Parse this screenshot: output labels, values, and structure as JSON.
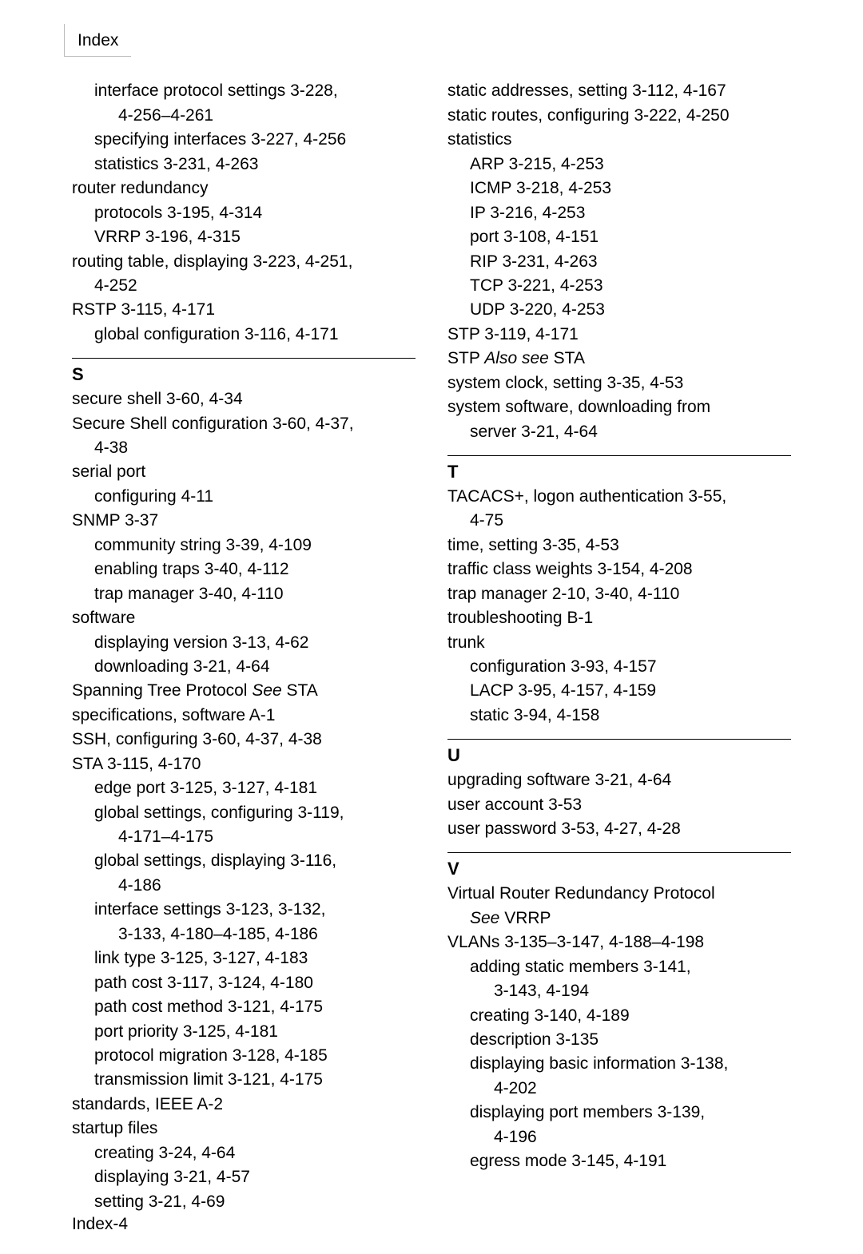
{
  "header": {
    "title": "Index"
  },
  "footer": {
    "label": "Index-4"
  },
  "left": {
    "pre": [
      {
        "cls": "sub1",
        "t": "interface protocol settings  3-228, "
      },
      {
        "cls": "sub2",
        "t": "4-256–4-261"
      },
      {
        "cls": "sub1",
        "t": "specifying interfaces  3-227, 4-256"
      },
      {
        "cls": "sub1",
        "t": "statistics  3-231, 4-263"
      },
      {
        "cls": "entry",
        "t": "router redundancy"
      },
      {
        "cls": "sub1",
        "t": "protocols  3-195, 4-314"
      },
      {
        "cls": "sub1",
        "t": "VRRP  3-196, 4-315"
      },
      {
        "cls": "entry",
        "t": "routing table, displaying  3-223, 4-251, "
      },
      {
        "cls": "sub1",
        "t": "4-252"
      },
      {
        "cls": "entry",
        "t": "RSTP  3-115, 4-171"
      },
      {
        "cls": "sub1",
        "t": "global configuration  3-116, 4-171"
      }
    ],
    "S": {
      "letter": "S",
      "items": [
        {
          "cls": "entry",
          "t": "secure shell  3-60, 4-34"
        },
        {
          "cls": "entry",
          "t": "Secure Shell configuration  3-60, 4-37, "
        },
        {
          "cls": "sub1",
          "t": "4-38"
        },
        {
          "cls": "entry",
          "t": "serial port"
        },
        {
          "cls": "sub1",
          "t": "configuring  4-11"
        },
        {
          "cls": "entry",
          "t": "SNMP  3-37"
        },
        {
          "cls": "sub1",
          "t": "community string  3-39, 4-109"
        },
        {
          "cls": "sub1",
          "t": "enabling traps  3-40, 4-112"
        },
        {
          "cls": "sub1",
          "t": "trap manager  3-40, 4-110"
        },
        {
          "cls": "entry",
          "t": "software"
        },
        {
          "cls": "sub1",
          "t": "displaying version  3-13, 4-62"
        },
        {
          "cls": "sub1",
          "t": "downloading  3-21, 4-64"
        },
        {
          "cls": "entry",
          "html": "Spanning Tree Protocol  <span class='italic'>See</span>  STA"
        },
        {
          "cls": "entry",
          "t": "specifications, software  A-1"
        },
        {
          "cls": "entry",
          "t": "SSH, configuring  3-60, 4-37, 4-38"
        },
        {
          "cls": "entry",
          "t": "STA  3-115, 4-170"
        },
        {
          "cls": "sub1",
          "t": "edge port  3-125, 3-127, 4-181"
        },
        {
          "cls": "sub1",
          "t": "global settings, configuring  3-119, "
        },
        {
          "cls": "sub2",
          "t": "4-171–4-175"
        },
        {
          "cls": "sub1",
          "t": "global settings, displaying  3-116, "
        },
        {
          "cls": "sub2",
          "t": "4-186"
        },
        {
          "cls": "sub1",
          "t": "interface settings  3-123, 3-132, "
        },
        {
          "cls": "sub2",
          "t": "3-133, 4-180–4-185, 4-186"
        },
        {
          "cls": "sub1",
          "t": "link type  3-125, 3-127, 4-183"
        },
        {
          "cls": "sub1",
          "t": "path cost  3-117, 3-124, 4-180"
        },
        {
          "cls": "sub1",
          "t": "path cost method  3-121, 4-175"
        },
        {
          "cls": "sub1",
          "t": "port priority  3-125, 4-181"
        },
        {
          "cls": "sub1",
          "t": "protocol migration  3-128, 4-185"
        },
        {
          "cls": "sub1",
          "t": "transmission limit  3-121, 4-175"
        },
        {
          "cls": "entry",
          "t": "standards, IEEE  A-2"
        },
        {
          "cls": "entry",
          "t": "startup files"
        },
        {
          "cls": "sub1",
          "t": "creating  3-24, 4-64"
        },
        {
          "cls": "sub1",
          "t": "displaying  3-21, 4-57"
        },
        {
          "cls": "sub1",
          "t": "setting  3-21, 4-69"
        }
      ]
    }
  },
  "right": {
    "pre": [
      {
        "cls": "entry",
        "t": "static addresses, setting  3-112, 4-167"
      },
      {
        "cls": "entry",
        "t": "static routes, configuring  3-222, 4-250"
      },
      {
        "cls": "entry",
        "t": "statistics"
      },
      {
        "cls": "sub1",
        "t": "ARP  3-215, 4-253"
      },
      {
        "cls": "sub1",
        "t": "ICMP  3-218, 4-253"
      },
      {
        "cls": "sub1",
        "t": "IP  3-216, 4-253"
      },
      {
        "cls": "sub1",
        "t": "port  3-108, 4-151"
      },
      {
        "cls": "sub1",
        "t": "RIP  3-231, 4-263"
      },
      {
        "cls": "sub1",
        "t": "TCP  3-221, 4-253"
      },
      {
        "cls": "sub1",
        "t": "UDP  3-220, 4-253"
      },
      {
        "cls": "entry",
        "t": "STP  3-119, 4-171"
      },
      {
        "cls": "entry",
        "html": "STP  <span class='italic'>Also see</span>  STA"
      },
      {
        "cls": "entry",
        "t": "system clock, setting  3-35, 4-53"
      },
      {
        "cls": "entry",
        "t": "system software, downloading from "
      },
      {
        "cls": "sub1",
        "t": "server  3-21, 4-64"
      }
    ],
    "T": {
      "letter": "T",
      "items": [
        {
          "cls": "entry",
          "t": "TACACS+, logon authentication  3-55, "
        },
        {
          "cls": "sub1",
          "t": "4-75"
        },
        {
          "cls": "entry",
          "t": "time, setting  3-35, 4-53"
        },
        {
          "cls": "entry",
          "t": "traffic class weights  3-154, 4-208"
        },
        {
          "cls": "entry",
          "t": "trap manager  2-10, 3-40, 4-110"
        },
        {
          "cls": "entry",
          "t": "troubleshooting  B-1"
        },
        {
          "cls": "entry",
          "t": "trunk"
        },
        {
          "cls": "sub1",
          "t": "configuration  3-93, 4-157"
        },
        {
          "cls": "sub1",
          "t": "LACP  3-95, 4-157, 4-159"
        },
        {
          "cls": "sub1",
          "t": "static  3-94, 4-158"
        }
      ]
    },
    "U": {
      "letter": "U",
      "items": [
        {
          "cls": "entry",
          "t": "upgrading software  3-21, 4-64"
        },
        {
          "cls": "entry",
          "t": "user account  3-53"
        },
        {
          "cls": "entry",
          "t": "user password  3-53, 4-27, 4-28"
        }
      ]
    },
    "V": {
      "letter": "V",
      "items": [
        {
          "cls": "entry",
          "t": "Virtual Router Redundancy Protocol "
        },
        {
          "cls": "sub1",
          "html": "<span class='italic'>See</span>  VRRP"
        },
        {
          "cls": "entry",
          "t": "VLANs  3-135–3-147, 4-188–4-198"
        },
        {
          "cls": "sub1",
          "t": "adding static members  3-141, "
        },
        {
          "cls": "sub2",
          "t": "3-143, 4-194"
        },
        {
          "cls": "sub1",
          "t": "creating  3-140, 4-189"
        },
        {
          "cls": "sub1",
          "t": "description  3-135"
        },
        {
          "cls": "sub1",
          "t": "displaying basic information  3-138, "
        },
        {
          "cls": "sub2",
          "t": "4-202"
        },
        {
          "cls": "sub1",
          "t": "displaying port members  3-139, "
        },
        {
          "cls": "sub2",
          "t": "4-196"
        },
        {
          "cls": "sub1",
          "t": "egress mode  3-145, 4-191"
        }
      ]
    }
  }
}
